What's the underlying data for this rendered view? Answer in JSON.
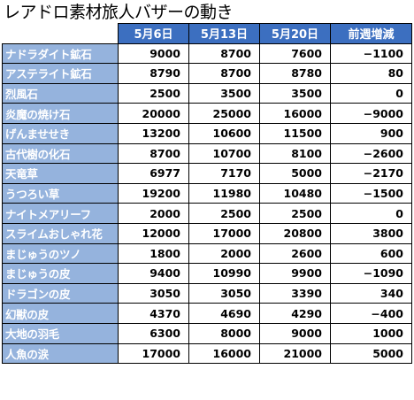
{
  "title": "レアドロ素材旅人バザーの動き",
  "table": {
    "columns": [
      "5月6日",
      "5月13日",
      "5月20日",
      "前週増減"
    ],
    "rows": [
      {
        "name": "ナドラダイト鉱石",
        "values": [
          "9000",
          "8700",
          "7600",
          "−1100"
        ]
      },
      {
        "name": "アステライト鉱石",
        "values": [
          "8790",
          "8700",
          "8780",
          "80"
        ]
      },
      {
        "name": "烈風石",
        "values": [
          "2500",
          "3500",
          "3500",
          "0"
        ]
      },
      {
        "name": "炎魔の焼け石",
        "values": [
          "20000",
          "25000",
          "16000",
          "−9000"
        ]
      },
      {
        "name": "げんませせき",
        "values": [
          "13200",
          "10600",
          "11500",
          "900"
        ]
      },
      {
        "name": "古代樹の化石",
        "values": [
          "8700",
          "10700",
          "8100",
          "−2600"
        ]
      },
      {
        "name": "天竜草",
        "values": [
          "6977",
          "7170",
          "5000",
          "−2170"
        ]
      },
      {
        "name": "うつろい草",
        "values": [
          "19200",
          "11980",
          "10480",
          "−1500"
        ]
      },
      {
        "name": "ナイトメアリーフ",
        "values": [
          "2000",
          "2500",
          "2500",
          "0"
        ]
      },
      {
        "name": "スライムおしゃれ花",
        "values": [
          "12000",
          "17000",
          "20800",
          "3800"
        ]
      },
      {
        "name": "まじゅうのツノ",
        "values": [
          "1800",
          "2000",
          "2600",
          "600"
        ]
      },
      {
        "name": "まじゅうの皮",
        "values": [
          "9400",
          "10990",
          "9900",
          "−1090"
        ]
      },
      {
        "name": "ドラゴンの皮",
        "values": [
          "3050",
          "3050",
          "3390",
          "340"
        ]
      },
      {
        "name": "幻獣の皮",
        "values": [
          "4370",
          "4690",
          "4290",
          "−400"
        ]
      },
      {
        "name": "大地の羽毛",
        "values": [
          "6300",
          "8000",
          "9000",
          "1000"
        ]
      },
      {
        "name": "人魚の涙",
        "values": [
          "17000",
          "16000",
          "21000",
          "5000"
        ]
      }
    ]
  },
  "colors": {
    "header_bg": "#3c6fc0",
    "name_cell_bg": "#95b3dd",
    "text_on_blue": "#ffffff"
  }
}
